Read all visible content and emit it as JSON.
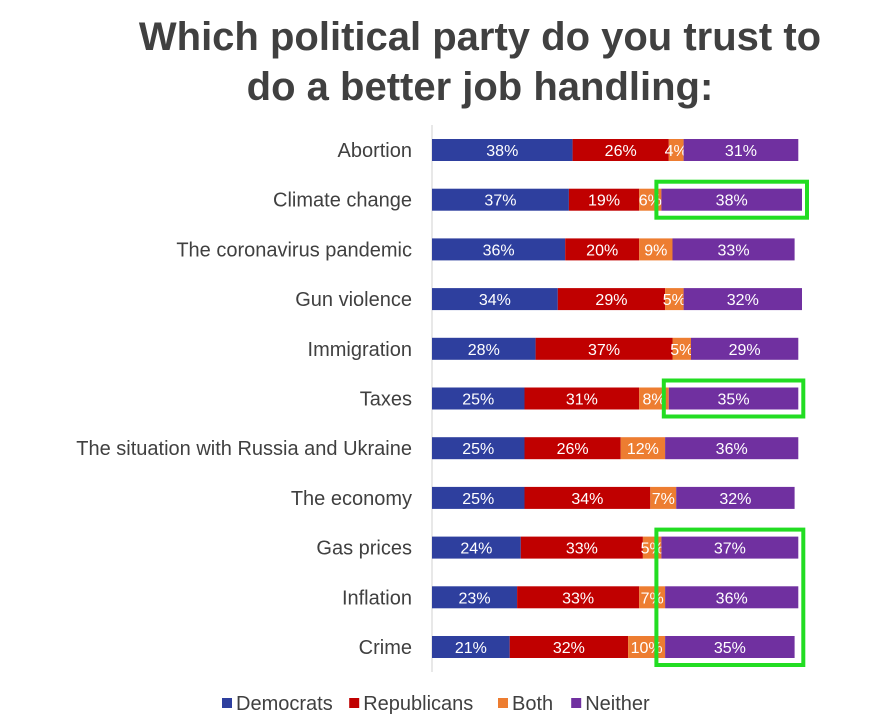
{
  "chart_data": {
    "type": "bar",
    "orientation": "horizontal",
    "stacked": true,
    "title_lines": [
      "Which political party do you trust to",
      "do a better job handling:"
    ],
    "categories": [
      "Abortion",
      "Climate change",
      "The coronavirus pandemic",
      "Gun violence",
      "Immigration",
      "Taxes",
      "The situation with Russia and Ukraine",
      "The economy",
      "Gas prices",
      "Inflation",
      "Crime"
    ],
    "series": [
      {
        "name": "Democrats",
        "color": "#2E3F9E",
        "values": [
          38,
          37,
          36,
          34,
          28,
          25,
          25,
          25,
          24,
          23,
          21
        ]
      },
      {
        "name": "Republicans",
        "color": "#C00000",
        "values": [
          26,
          19,
          20,
          29,
          37,
          31,
          26,
          34,
          33,
          33,
          32
        ]
      },
      {
        "name": "Both",
        "color": "#ED7D31",
        "values": [
          4,
          6,
          9,
          5,
          5,
          8,
          12,
          7,
          5,
          7,
          10
        ]
      },
      {
        "name": "Neither",
        "color": "#7030A0",
        "values": [
          31,
          38,
          33,
          32,
          29,
          35,
          36,
          32,
          37,
          36,
          35
        ]
      }
    ],
    "value_suffix": "%",
    "legend_position": "bottom",
    "highlight_color": "#22DD22",
    "highlights": [
      {
        "series": "Neither",
        "categories": [
          "Climate change"
        ]
      },
      {
        "series": "Neither",
        "categories": [
          "Taxes"
        ]
      },
      {
        "series": "Neither",
        "categories": [
          "Gas prices",
          "Inflation",
          "Crime"
        ]
      }
    ]
  }
}
